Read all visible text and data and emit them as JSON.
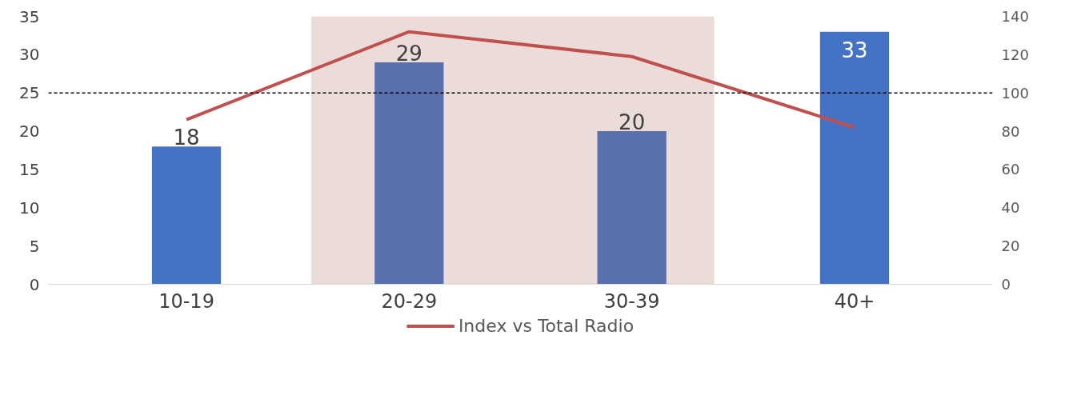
{
  "chart_data": {
    "type": "bar",
    "categories": [
      "10-19",
      "20-29",
      "30-39",
      "40+"
    ],
    "series": [
      {
        "colors": [
          "#4472c4",
          "#5a6fae",
          "#5a6fae",
          "#4472c4"
        ],
        "values": [
          18,
          29,
          20,
          33
        ],
        "value_labels": [
          "18",
          "29",
          "20",
          "33"
        ]
      },
      {
        "type": "line",
        "name": "Index vs Total Radio",
        "color": "#c0504d",
        "axis": "y2",
        "values": [
          86,
          132,
          119,
          82
        ]
      }
    ],
    "ylim": [
      0,
      35
    ],
    "yticks": [
      0,
      5,
      10,
      15,
      20,
      25,
      30,
      35
    ],
    "y2lim": [
      0,
      140
    ],
    "y2ticks": [
      0,
      20,
      40,
      60,
      80,
      100,
      120,
      140
    ],
    "ref_lines": [
      {
        "axis": "y2",
        "value": 100,
        "color": "#000000",
        "line_style": "dashed"
      }
    ],
    "bands": [
      {
        "axis": "x",
        "from": "20-29",
        "to": "30-39",
        "color": "#ebdcd9"
      }
    ],
    "grid": false,
    "legend": "bottom",
    "marker": "none",
    "line_style": "solid"
  }
}
